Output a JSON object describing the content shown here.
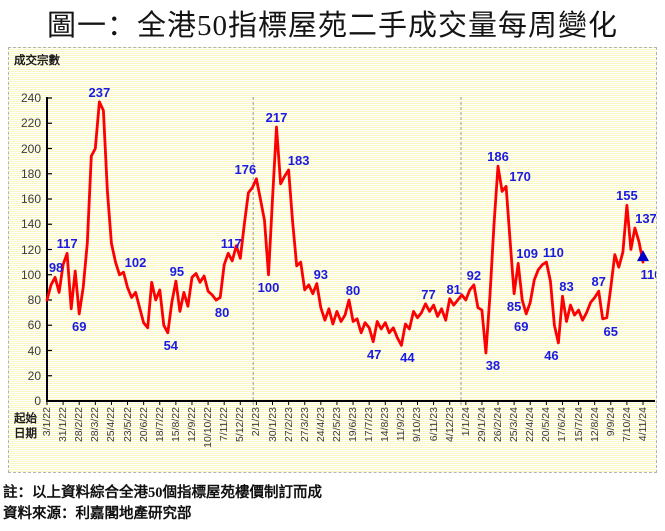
{
  "page": {
    "title": "圖一：全港50指標屋苑二手成交量每周變化",
    "notes": {
      "line1": "註：以上資料綜合全港50個指標屋苑樓價制訂而成",
      "line2": "資料來源：利嘉閣地產研究部"
    }
  },
  "chart_data": {
    "type": "line",
    "title": "圖一：全港50指標屋苑二手成交量每周變化",
    "y_axis_title": "成交宗數",
    "x_axis_title": "起始日期",
    "x_axis_title_lines": [
      "起始",
      "日期"
    ],
    "ylim": [
      0,
      240
    ],
    "y_tick_step": 20,
    "x_unit": "week",
    "x_tick_every_weeks": 4,
    "x_tick_labels": [
      "3/1/22",
      "31/1/22",
      "28/2/22",
      "28/3/22",
      "25/4/22",
      "23/5/22",
      "20/6/22",
      "18/7/22",
      "15/8/22",
      "12/9/22",
      "10/10/22",
      "7/11/22",
      "5/12/22",
      "2/1/23",
      "30/1/23",
      "27/2/23",
      "27/3/23",
      "24/4/23",
      "22/5/23",
      "19/6/23",
      "17/7/23",
      "14/8/23",
      "11/9/23",
      "9/10/23",
      "6/11/23",
      "4/12/23",
      "1/1/24",
      "29/1/24",
      "26/2/24",
      "25/3/24",
      "22/4/24",
      "20/5/24",
      "17/6/24",
      "15/7/24",
      "12/8/24",
      "9/9/24",
      "7/10/24",
      "4/11/24"
    ],
    "values": [
      80,
      92,
      98,
      86,
      108,
      117,
      73,
      103,
      69,
      90,
      125,
      194,
      200,
      237,
      230,
      166,
      125,
      110,
      100,
      102,
      90,
      82,
      86,
      74,
      62,
      58,
      94,
      80,
      88,
      60,
      54,
      78,
      95,
      71,
      86,
      75,
      98,
      101,
      94,
      99,
      87,
      84,
      80,
      82,
      108,
      117,
      111,
      123,
      113,
      140,
      165,
      169,
      176,
      160,
      143,
      100,
      160,
      217,
      172,
      178,
      183,
      142,
      107,
      110,
      88,
      92,
      85,
      93,
      74,
      64,
      73,
      61,
      71,
      63,
      68,
      80,
      63,
      65,
      54,
      62,
      58,
      47,
      63,
      57,
      62,
      54,
      58,
      50,
      44,
      61,
      57,
      71,
      66,
      70,
      77,
      71,
      76,
      67,
      73,
      64,
      81,
      76,
      80,
      84,
      80,
      88,
      92,
      74,
      72,
      38,
      84,
      140,
      186,
      166,
      170,
      127,
      85,
      109,
      80,
      69,
      78,
      96,
      104,
      108,
      110,
      95,
      60,
      46,
      83,
      63,
      76,
      68,
      72,
      64,
      70,
      78,
      82,
      87,
      65,
      66,
      90,
      116,
      106,
      118,
      155,
      120,
      137,
      126,
      110
    ],
    "annotations": [
      {
        "label": "98",
        "week": 2,
        "value": 98,
        "pos": "above",
        "dx": 1
      },
      {
        "label": "117",
        "week": 5,
        "value": 117,
        "pos": "above",
        "dx": 0
      },
      {
        "label": "69",
        "week": 8,
        "value": 69,
        "pos": "below",
        "dx": 0
      },
      {
        "label": "237",
        "week": 13,
        "value": 237,
        "pos": "above",
        "dx": 0
      },
      {
        "label": "102",
        "week": 19,
        "value": 102,
        "pos": "above",
        "dx": 12
      },
      {
        "label": "54",
        "week": 30,
        "value": 54,
        "pos": "below",
        "dx": 3
      },
      {
        "label": "95",
        "week": 32,
        "value": 95,
        "pos": "above",
        "dx": 1
      },
      {
        "label": "80",
        "week": 42,
        "value": 80,
        "pos": "below",
        "dx": 6
      },
      {
        "label": "117",
        "week": 45,
        "value": 117,
        "pos": "above",
        "dx": 3
      },
      {
        "label": "176",
        "week": 52,
        "value": 176,
        "pos": "above",
        "dx": -11
      },
      {
        "label": "100",
        "week": 55,
        "value": 100,
        "pos": "below",
        "dx": 0
      },
      {
        "label": "217",
        "week": 57,
        "value": 217,
        "pos": "above",
        "dx": 0
      },
      {
        "label": "183",
        "week": 60,
        "value": 183,
        "pos": "above",
        "dx": 10
      },
      {
        "label": "93",
        "week": 67,
        "value": 93,
        "pos": "above",
        "dx": 4
      },
      {
        "label": "80",
        "week": 75,
        "value": 80,
        "pos": "above",
        "dx": 4
      },
      {
        "label": "47",
        "week": 81,
        "value": 47,
        "pos": "below",
        "dx": 1
      },
      {
        "label": "44",
        "week": 88,
        "value": 44,
        "pos": "below",
        "dx": 6
      },
      {
        "label": "77",
        "week": 94,
        "value": 77,
        "pos": "above",
        "dx": 3
      },
      {
        "label": "81",
        "week": 100,
        "value": 81,
        "pos": "above",
        "dx": 4
      },
      {
        "label": "92",
        "week": 106,
        "value": 92,
        "pos": "above",
        "dx": 0
      },
      {
        "label": "38",
        "week": 109,
        "value": 38,
        "pos": "below",
        "dx": 7
      },
      {
        "label": "186",
        "week": 112,
        "value": 186,
        "pos": "above",
        "dx": 0
      },
      {
        "label": "170",
        "week": 114,
        "value": 170,
        "pos": "above",
        "dx": 14
      },
      {
        "label": "85",
        "week": 116,
        "value": 85,
        "pos": "below",
        "dx": 0
      },
      {
        "label": "109",
        "week": 117,
        "value": 109,
        "pos": "above",
        "dx": 9
      },
      {
        "label": "69",
        "week": 119,
        "value": 69,
        "pos": "below",
        "dx": -5
      },
      {
        "label": "110",
        "week": 124,
        "value": 110,
        "pos": "above",
        "dx": 7
      },
      {
        "label": "46",
        "week": 127,
        "value": 46,
        "pos": "below",
        "dx": -7
      },
      {
        "label": "83",
        "week": 128,
        "value": 83,
        "pos": "above",
        "dx": 4
      },
      {
        "label": "87",
        "week": 137,
        "value": 87,
        "pos": "above",
        "dx": 0
      },
      {
        "label": "65",
        "week": 138,
        "value": 65,
        "pos": "below",
        "dx": 8
      },
      {
        "label": "155",
        "week": 144,
        "value": 155,
        "pos": "above",
        "dx": 0
      },
      {
        "label": "137",
        "week": 146,
        "value": 137,
        "pos": "above",
        "dx": 11
      },
      {
        "label": "110",
        "week": 148,
        "value": 110,
        "pos": "below",
        "dx": 8
      }
    ],
    "year_divider_weeks": [
      51.2,
      102.8
    ],
    "last_point_marker": {
      "week": 148,
      "value": 110,
      "shape": "triangle-up"
    },
    "legend": null,
    "grid": "off",
    "colors": {
      "line": "#FF0000",
      "labels": "#1B1BE0",
      "axis": "#000000",
      "marker": "#0000CC",
      "divider": "#9A9A9A",
      "plot_background": "#FDFACD"
    }
  }
}
